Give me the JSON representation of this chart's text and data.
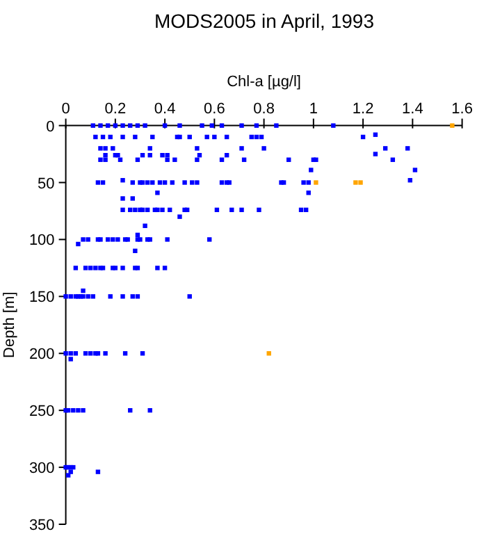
{
  "chart_data": {
    "type": "scatter",
    "title": "MODS2005 in April, 1993",
    "xlabel": "Chl-a [µg/l]",
    "ylabel": "Depth [m]",
    "xlim": [
      0,
      1.6
    ],
    "xticks": [
      0,
      0.2,
      0.4,
      0.6,
      0.8,
      1,
      1.2,
      1.4,
      1.6
    ],
    "ylim": [
      350,
      0
    ],
    "yticks": [
      0,
      50,
      100,
      150,
      200,
      250,
      300,
      350
    ],
    "marker": "square",
    "series": [
      {
        "color": "#0000ff",
        "x": [
          0.11,
          0.14,
          0.17,
          0.2,
          0.23,
          0.26,
          0.29,
          0.32,
          0.4,
          0.46,
          0.55,
          0.59,
          0.63,
          0.71,
          0.77,
          0.85,
          1.08,
          0.12,
          0.15,
          0.18,
          0.23,
          0.28,
          0.35,
          0.45,
          0.46,
          0.5,
          0.57,
          0.6,
          0.65,
          0.75,
          0.77,
          0.79,
          1.2,
          1.25,
          0.14,
          0.16,
          0.19,
          0.34,
          0.53,
          0.71,
          0.8,
          1.29,
          1.38,
          1.25,
          0.16,
          0.2,
          0.21,
          0.31,
          0.34,
          0.39,
          0.41,
          0.54,
          0.65,
          0.14,
          0.16,
          0.22,
          0.29,
          0.41,
          0.44,
          0.53,
          0.63,
          0.72,
          0.9,
          1,
          1.01,
          1.32,
          0.99,
          1.41,
          0.23,
          1.39,
          0.13,
          0.15,
          0.27,
          0.3,
          0.31,
          0.33,
          0.35,
          0.38,
          0.4,
          0.43,
          0.48,
          0.51,
          0.53,
          0.63,
          0.65,
          0.66,
          0.87,
          0.88,
          0.96,
          0.98,
          0.37,
          0.98,
          0.23,
          0.27,
          0.23,
          0.26,
          0.28,
          0.3,
          0.31,
          0.33,
          0.36,
          0.37,
          0.39,
          0.42,
          0.48,
          0.49,
          0.61,
          0.67,
          0.71,
          0.78,
          0.95,
          0.97,
          0.46,
          0.32,
          0.29,
          0.05,
          0.07,
          0.09,
          0.13,
          0.14,
          0.17,
          0.19,
          0.21,
          0.24,
          0.25,
          0.29,
          0.3,
          0.33,
          0.34,
          0.41,
          0.58,
          0.28,
          0.04,
          0.08,
          0.1,
          0.12,
          0.14,
          0.15,
          0.19,
          0.2,
          0.23,
          0.28,
          0.29,
          0.37,
          0.4,
          0,
          0.02,
          0.04,
          0.05,
          0.06,
          0.07,
          0.09,
          0.11,
          0.18,
          0.23,
          0.27,
          0.29,
          0.5,
          0.07,
          0,
          0.02,
          0.04,
          0.08,
          0.1,
          0.12,
          0.13,
          0.16,
          0.24,
          0.31,
          0.02,
          0,
          0.01,
          0.03,
          0.05,
          0.07,
          0.26,
          0.34,
          0,
          0.01,
          0.02,
          0.03,
          0.01,
          0.02,
          0.13
        ],
        "values": [
          0,
          0,
          0,
          0,
          0,
          0,
          0,
          0,
          0,
          0,
          0,
          0,
          0,
          0,
          0,
          0,
          0,
          10,
          10,
          10,
          10,
          10,
          10,
          10,
          10,
          10,
          10,
          10,
          10,
          10,
          10,
          10,
          10,
          8,
          20,
          20,
          20,
          20,
          20,
          20,
          20,
          20,
          20,
          25,
          26,
          26,
          26,
          26,
          26,
          26,
          26,
          26,
          26,
          30,
          30,
          30,
          30,
          30,
          30,
          30,
          30,
          30,
          30,
          30,
          30,
          30,
          39,
          39,
          48,
          48,
          50,
          50,
          50,
          50,
          50,
          50,
          50,
          50,
          50,
          50,
          50,
          50,
          50,
          50,
          50,
          50,
          50,
          50,
          50,
          50,
          59,
          59,
          64,
          64,
          74,
          74,
          74,
          74,
          74,
          74,
          74,
          74,
          74,
          74,
          74,
          74,
          74,
          74,
          74,
          74,
          74,
          74,
          80,
          88,
          96,
          104,
          100,
          100,
          100,
          100,
          100,
          100,
          100,
          100,
          100,
          100,
          100,
          100,
          100,
          100,
          100,
          110,
          125,
          125,
          125,
          125,
          125,
          125,
          125,
          125,
          125,
          125,
          125,
          125,
          125,
          150,
          150,
          150,
          150,
          150,
          150,
          150,
          150,
          150,
          150,
          150,
          150,
          150,
          145,
          200,
          200,
          200,
          200,
          200,
          200,
          200,
          200,
          200,
          200,
          205,
          250,
          250,
          250,
          250,
          250,
          250,
          250,
          300,
          300,
          300,
          300,
          307,
          304,
          304
        ]
      },
      {
        "color": "#ffa500",
        "x": [
          1.56,
          1.01,
          1.17,
          1.19,
          0.82
        ],
        "values": [
          0,
          50,
          50,
          50,
          200
        ]
      }
    ]
  }
}
